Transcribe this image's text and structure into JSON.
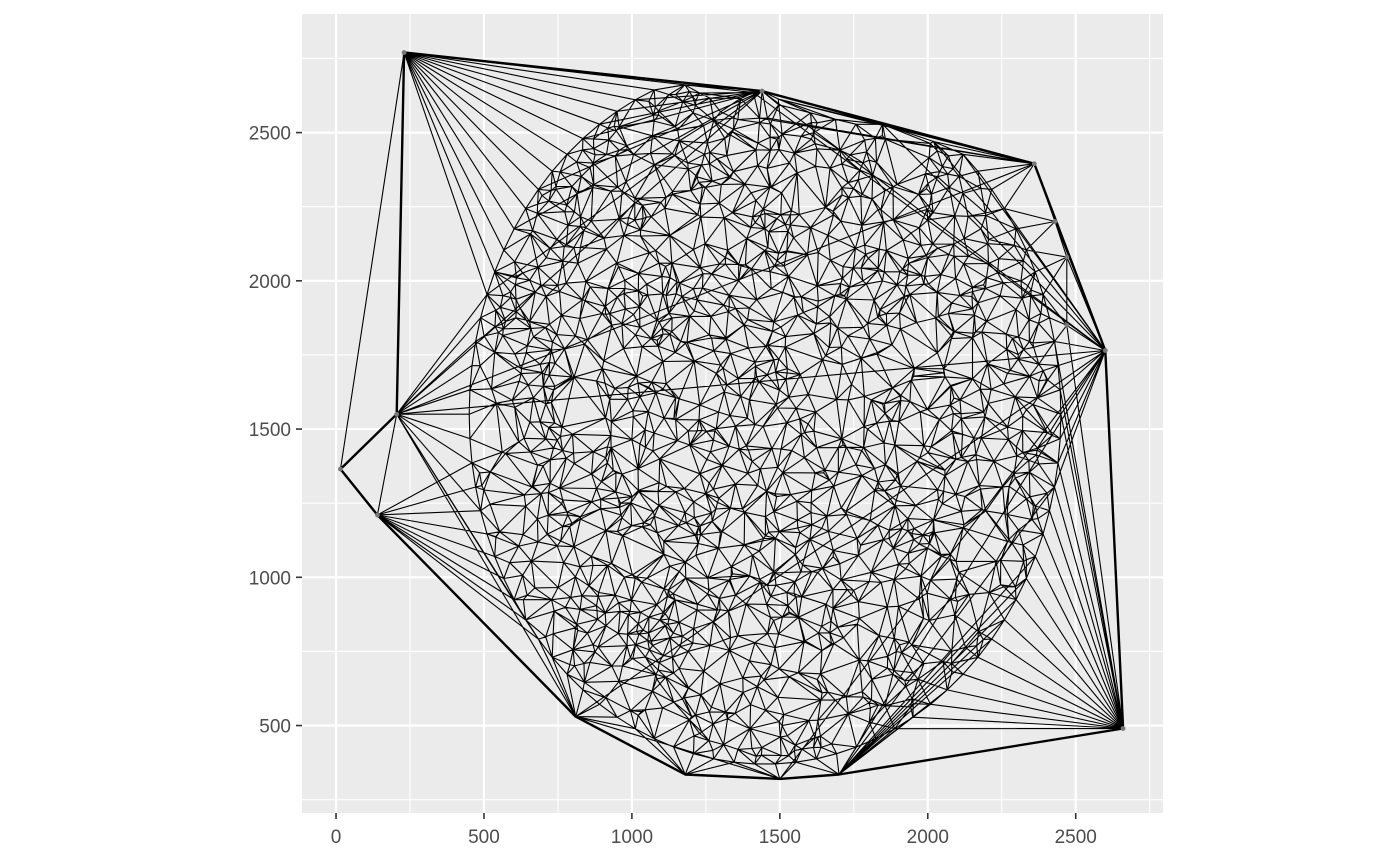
{
  "chart_data": {
    "type": "mesh",
    "title": "",
    "xlabel": "",
    "ylabel": "",
    "xlim": [
      -115,
      2795
    ],
    "ylim": [
      205,
      2900
    ],
    "x_ticks": [
      0,
      500,
      1000,
      1500,
      2000,
      2500
    ],
    "y_ticks": [
      500,
      1000,
      1500,
      2000,
      2500
    ],
    "x_tick_labels": [
      "0",
      "500",
      "1000",
      "1500",
      "2000",
      "2500"
    ],
    "y_tick_labels": [
      "500",
      "1000",
      "1500",
      "2000",
      "2500"
    ],
    "grid": true,
    "panel_background": "#ebebeb",
    "grid_color": "#ffffff",
    "edge_color": "#000000",
    "core_disc": {
      "center": [
        1450,
        1550
      ],
      "radius_x": 1000,
      "radius_y": 1180,
      "approx_points": 1400
    },
    "hull_vertices": [
      [
        230,
        2770
      ],
      [
        1440,
        2640
      ],
      [
        2360,
        2395
      ],
      [
        2600,
        1765
      ],
      [
        2660,
        490
      ],
      [
        1700,
        335
      ],
      [
        1500,
        320
      ],
      [
        1180,
        335
      ],
      [
        810,
        530
      ],
      [
        140,
        1210
      ],
      [
        15,
        1365
      ],
      [
        205,
        1550
      ]
    ],
    "outlier_points": [
      [
        230,
        2770
      ],
      [
        1440,
        2640
      ],
      [
        2360,
        2395
      ],
      [
        2430,
        2200
      ],
      [
        2470,
        2080
      ],
      [
        2470,
        1850
      ],
      [
        2600,
        1765
      ],
      [
        2660,
        490
      ],
      [
        205,
        1550
      ],
      [
        15,
        1365
      ],
      [
        140,
        1210
      ]
    ]
  }
}
